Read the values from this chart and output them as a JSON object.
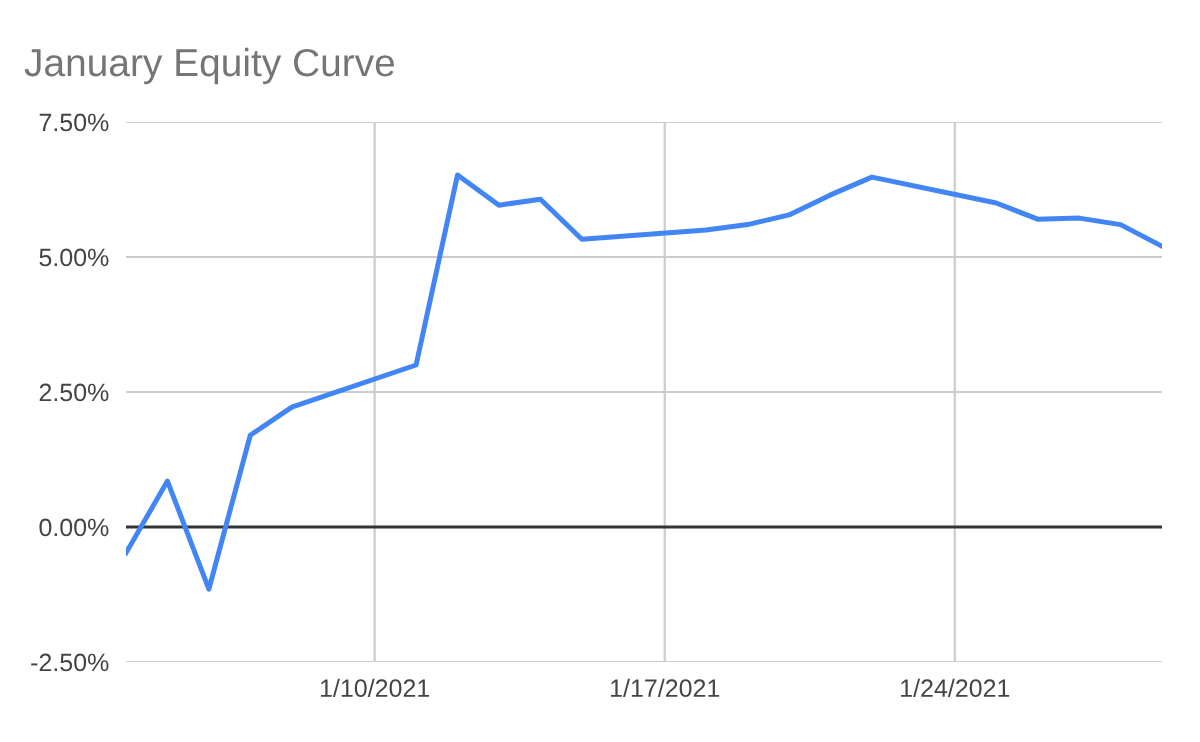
{
  "chart_data": {
    "type": "line",
    "title": "January Equity Curve",
    "x": [
      "2021-01-04",
      "2021-01-05",
      "2021-01-06",
      "2021-01-07",
      "2021-01-08",
      "2021-01-11",
      "2021-01-12",
      "2021-01-13",
      "2021-01-14",
      "2021-01-15",
      "2021-01-18",
      "2021-01-19",
      "2021-01-20",
      "2021-01-21",
      "2021-01-22",
      "2021-01-25",
      "2021-01-26",
      "2021-01-27",
      "2021-01-28",
      "2021-01-29"
    ],
    "series": [
      {
        "color": "#4285f4",
        "values": [
          -0.48,
          0.85,
          -1.15,
          1.7,
          2.22,
          3.0,
          6.52,
          5.96,
          6.07,
          5.33,
          5.5,
          5.6,
          5.78,
          6.15,
          6.48,
          6.0,
          5.7,
          5.72,
          5.6,
          5.2
        ]
      }
    ],
    "xlim": [
      "2021-01-04",
      "2021-01-29"
    ],
    "xticks": [
      {
        "value": "2021-01-10",
        "label": "1/10/2021"
      },
      {
        "value": "2021-01-17",
        "label": "1/17/2021"
      },
      {
        "value": "2021-01-24",
        "label": "1/24/2021"
      }
    ],
    "ylim": [
      -2.5,
      7.5
    ],
    "yticks": [
      {
        "value": -2.5,
        "label": "-2.50%"
      },
      {
        "value": 0,
        "label": "0.00%"
      },
      {
        "value": 2.5,
        "label": "2.50%"
      },
      {
        "value": 5,
        "label": "5.00%"
      },
      {
        "value": 7.5,
        "label": "7.50%"
      }
    ],
    "ref_lines": [
      {
        "axis": "y",
        "value": 0,
        "color": "#333333"
      }
    ],
    "grid": true,
    "marker": "none",
    "line_style": "solid",
    "legend": false
  }
}
